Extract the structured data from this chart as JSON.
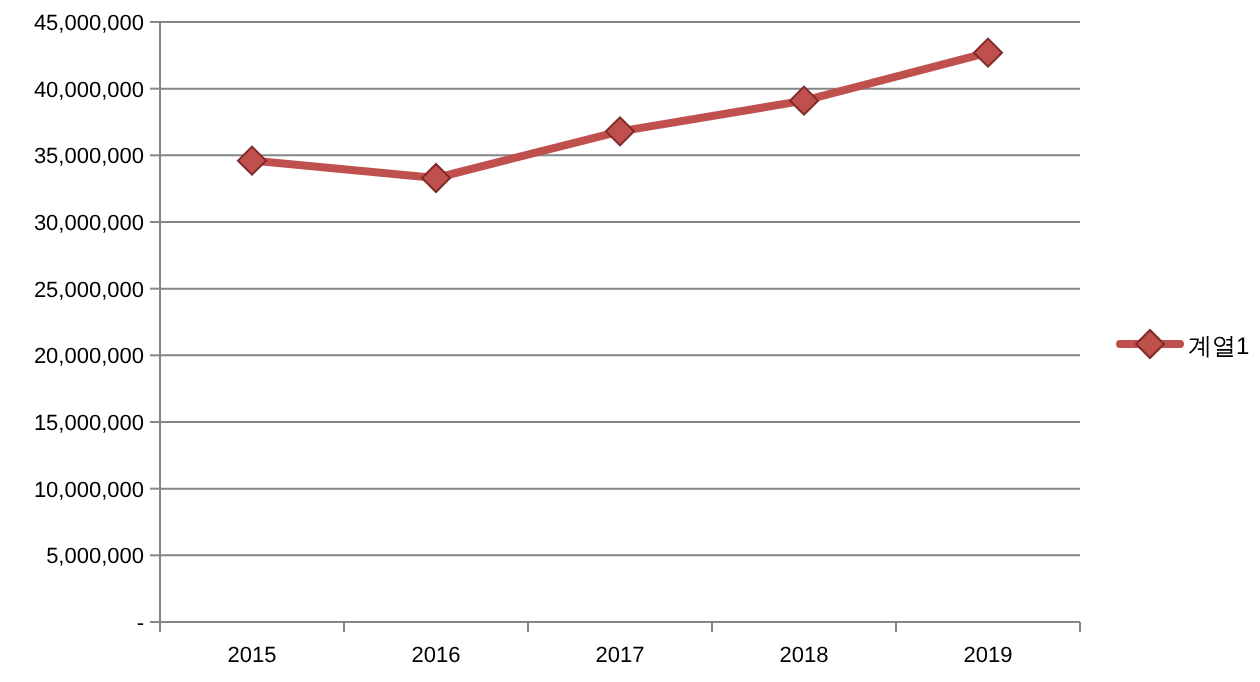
{
  "chart_data": {
    "type": "line",
    "categories": [
      "2015",
      "2016",
      "2017",
      "2018",
      "2019"
    ],
    "series": [
      {
        "name": "계열1",
        "color": "#c0504d",
        "values": [
          34600000,
          33300000,
          36800000,
          39100000,
          42700000
        ]
      }
    ],
    "ylim": [
      0,
      45000000
    ],
    "yticks": [
      {
        "value": 0,
        "label": "-"
      },
      {
        "value": 5000000,
        "label": "5,000,000"
      },
      {
        "value": 10000000,
        "label": "10,000,000"
      },
      {
        "value": 15000000,
        "label": "15,000,000"
      },
      {
        "value": 20000000,
        "label": "20,000,000"
      },
      {
        "value": 25000000,
        "label": "25,000,000"
      },
      {
        "value": 30000000,
        "label": "30,000,000"
      },
      {
        "value": 35000000,
        "label": "35,000,000"
      },
      {
        "value": 40000000,
        "label": "40,000,000"
      },
      {
        "value": 45000000,
        "label": "45,000,000"
      }
    ],
    "grid": "y",
    "legend": "right",
    "marker": "diamond",
    "line_style": "solid"
  }
}
